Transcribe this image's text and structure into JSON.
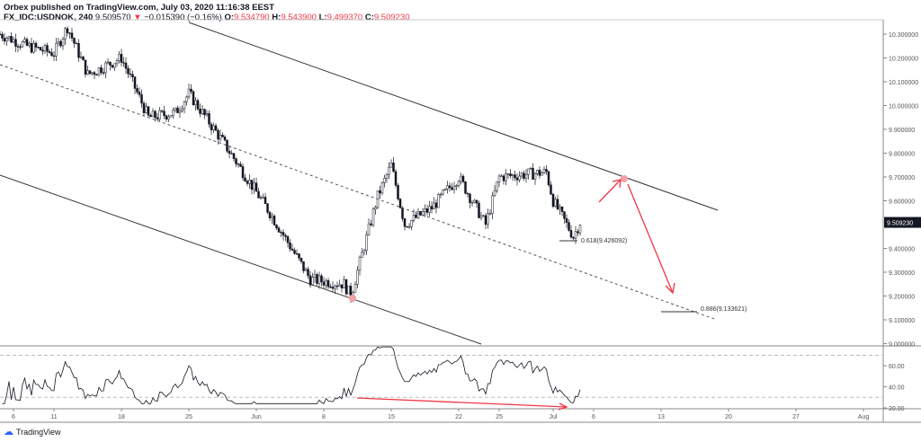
{
  "header": {
    "published": "Orbex published on TradingView.com, July 03, 2020 11:16:38 EEST",
    "symbol": "FX_IDC:USDNOK, 240",
    "last": "9.509570",
    "change": "−0.015390 (−0.16%)",
    "o_label": "O:",
    "o": "9.534790",
    "h_label": "H:",
    "h": "9.543900",
    "l_label": "L:",
    "l": "9.499370",
    "c_label": "C:",
    "c": "9.509230"
  },
  "footer": {
    "brand": "TradingView"
  },
  "colors": {
    "up": "#131722",
    "down": "#131722",
    "accent": "#f23645",
    "current_price_bg": "#131722"
  },
  "chart_data": [
    {
      "type": "candlestick",
      "symbol": "USDNOK",
      "interval": "240",
      "ylim": [
        9.0,
        10.35
      ],
      "y_ticks": [
        "10.300000",
        "10.200000",
        "10.100000",
        "10.000000",
        "9.900000",
        "9.800000",
        "9.700000",
        "9.600000",
        "9.400000",
        "9.300000",
        "9.200000",
        "9.100000",
        "9.000000"
      ],
      "current_price": "9.509230",
      "x_ticks": [
        {
          "label": "6",
          "d": 0
        },
        {
          "label": "11",
          "d": 3
        },
        {
          "label": "18",
          "d": 8
        },
        {
          "label": "25",
          "d": 13
        },
        {
          "label": "Jun",
          "d": 18
        },
        {
          "label": "8",
          "d": 23
        },
        {
          "label": "15",
          "d": 28
        },
        {
          "label": "22",
          "d": 33
        },
        {
          "label": "25",
          "d": 36
        },
        {
          "label": "Jul",
          "d": 40
        },
        {
          "label": "6",
          "d": 43
        },
        {
          "label": "13",
          "d": 48
        },
        {
          "label": "20",
          "d": 53
        },
        {
          "label": "27",
          "d": 58
        },
        {
          "label": "Aug",
          "d": 63
        }
      ],
      "price_path": [
        [
          -1,
          10.3
        ],
        [
          1,
          10.25
        ],
        [
          3,
          10.22
        ],
        [
          4,
          10.33
        ],
        [
          5.5,
          10.13
        ],
        [
          8,
          10.2
        ],
        [
          10,
          9.95
        ],
        [
          12,
          9.97
        ],
        [
          13,
          10.05
        ],
        [
          15.5,
          9.85
        ],
        [
          19,
          9.55
        ],
        [
          22,
          9.27
        ],
        [
          24.5,
          9.25
        ],
        [
          25,
          9.2
        ],
        [
          27,
          9.62
        ],
        [
          28,
          9.75
        ],
        [
          29,
          9.5
        ],
        [
          31,
          9.57
        ],
        [
          33,
          9.7
        ],
        [
          35,
          9.5
        ],
        [
          36,
          9.7
        ],
        [
          39.5,
          9.72
        ],
        [
          40,
          9.6
        ],
        [
          41.5,
          9.45
        ],
        [
          42,
          9.51
        ]
      ],
      "annotations": {
        "fib_618": "0.618(9.426092)",
        "fib_886": "0.886(9.133621)"
      }
    },
    {
      "type": "line",
      "indicator": "RSI",
      "ylim": [
        20,
        80
      ],
      "y_ticks": [
        "60.00",
        "40.00",
        "20.00"
      ],
      "bands": [
        70,
        30
      ]
    }
  ]
}
